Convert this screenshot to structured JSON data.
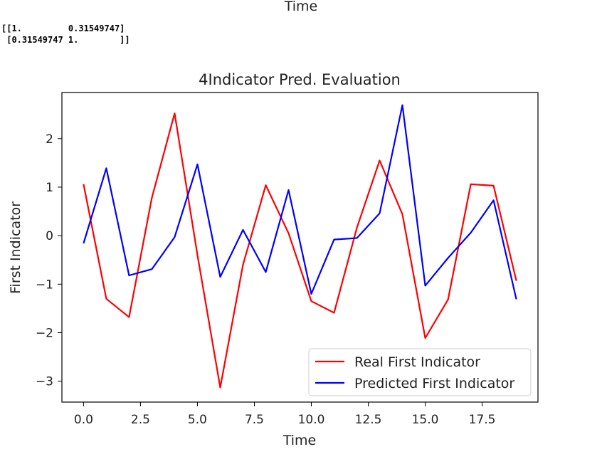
{
  "previous_plot": {
    "xlabel_fragment": "Time"
  },
  "console_output": {
    "lines": [
      "[[1.         0.31549747]",
      " [0.31549747 1.        ]]"
    ]
  },
  "chart_data": {
    "type": "line",
    "title": "4Indicator Pred. Evaluation",
    "xlabel": "Time",
    "ylabel": "First Indicator",
    "x": [
      0,
      1,
      2,
      3,
      4,
      5,
      6,
      7,
      8,
      9,
      10,
      11,
      12,
      13,
      14,
      15,
      16,
      17,
      18,
      19
    ],
    "xlim": [
      -0.95,
      19.95
    ],
    "ylim": [
      -3.43,
      2.95
    ],
    "xticks": [
      0.0,
      2.5,
      5.0,
      7.5,
      10.0,
      12.5,
      15.0,
      17.5
    ],
    "xtick_labels": [
      "0.0",
      "2.5",
      "5.0",
      "7.5",
      "10.0",
      "12.5",
      "15.0",
      "17.5"
    ],
    "yticks": [
      -3,
      -2,
      -1,
      0,
      1,
      2
    ],
    "ytick_labels": [
      "−3",
      "−2",
      "−1",
      "0",
      "1",
      "2"
    ],
    "grid": false,
    "legend_position": "lower-right",
    "series": [
      {
        "name": "Real First Indicator",
        "color": "#ff0000",
        "values": [
          1.06,
          -1.3,
          -1.68,
          0.78,
          2.52,
          -0.4,
          -3.13,
          -0.6,
          1.04,
          0.05,
          -1.35,
          -1.59,
          0.16,
          1.55,
          0.44,
          -2.11,
          -1.32,
          1.06,
          1.03,
          -0.93
        ]
      },
      {
        "name": "Predicted First Indicator",
        "color": "#0000ff",
        "values": [
          -0.16,
          1.39,
          -0.82,
          -0.69,
          -0.03,
          1.47,
          -0.85,
          0.12,
          -0.75,
          0.94,
          -1.2,
          -0.08,
          -0.05,
          0.46,
          2.69,
          -1.03,
          -0.46,
          0.06,
          0.73,
          -1.31
        ]
      }
    ]
  }
}
